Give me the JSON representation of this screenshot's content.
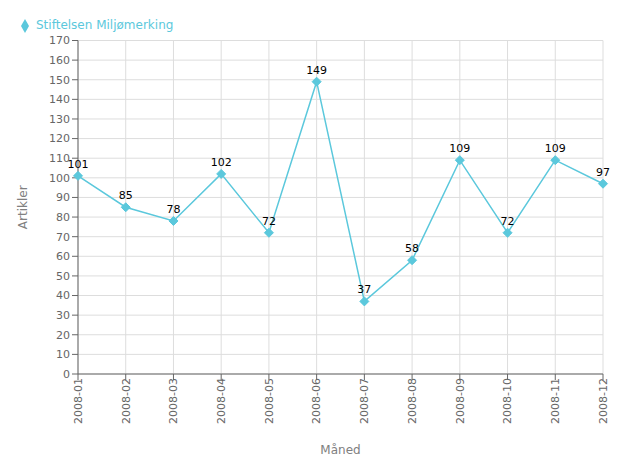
{
  "chart_data": {
    "type": "line",
    "categories": [
      "2008-01",
      "2008-02",
      "2008-03",
      "2008-04",
      "2008-05",
      "2008-06",
      "2008-07",
      "2008-08",
      "2008-09",
      "2008-10",
      "2008-11",
      "2008-12"
    ],
    "series": [
      {
        "name": "Stiftelsen Miljømerking",
        "color": "#5BC8DC",
        "marker": "diamond",
        "values": [
          101,
          85,
          78,
          102,
          72,
          149,
          37,
          58,
          109,
          72,
          109,
          97
        ]
      }
    ],
    "xlabel": "Måned",
    "ylabel": "Artikler",
    "ylim": [
      0,
      170
    ],
    "yticks": [
      0,
      10,
      20,
      30,
      40,
      50,
      60,
      70,
      80,
      90,
      100,
      110,
      120,
      130,
      140,
      150,
      160,
      170
    ],
    "grid": true,
    "legend": "upper left",
    "data_labels": true
  }
}
